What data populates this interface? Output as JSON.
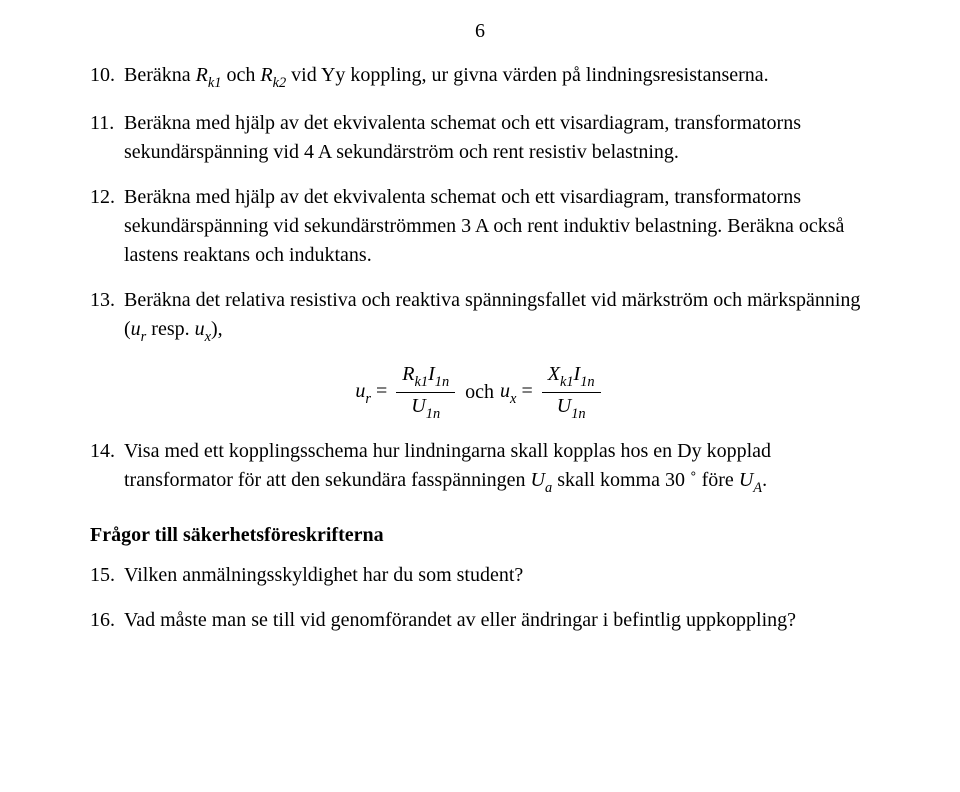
{
  "page_number": "6",
  "items": {
    "q10": {
      "num": "10.",
      "t1": "Beräkna ",
      "rk1": "R",
      "rk1_sub": "k1",
      "t2": " och ",
      "rk2": "R",
      "rk2_sub": "k2",
      "t3": " vid Yy koppling, ur givna värden på lindningsresistanserna."
    },
    "q11": {
      "num": "11.",
      "text": "Beräkna med hjälp av det ekvivalenta schemat och ett visardiagram, transformatorns sekundärspänning vid 4 A sekundärström och rent resistiv belastning."
    },
    "q12": {
      "num": "12.",
      "text": "Beräkna med hjälp av det ekvivalenta schemat och ett visardiagram, transformatorns sekundärspänning vid sekundärströmmen 3 A och rent induktiv belastning. Beräkna också lastens reaktans och induktans."
    },
    "q13": {
      "num": "13.",
      "t1": "Beräkna det relativa resistiva och reaktiva spänningsfallet vid märkström och märkspänning (",
      "ur": "u",
      "ur_sub": "r",
      "t2": " resp. ",
      "ux": "u",
      "ux_sub": "x",
      "t3": "),"
    },
    "formula": {
      "ur": "u",
      "ur_sub": "r",
      "eq": " = ",
      "n1_R": "R",
      "n1_R_sub": "k1",
      "n1_I": "I",
      "n1_I_sub": "1n",
      "d1_U": "U",
      "d1_U_sub": "1n",
      "och": " och ",
      "ux": "u",
      "ux_sub": "x",
      "n2_X": "X",
      "n2_X_sub": "k1",
      "n2_I": "I",
      "n2_I_sub": "1n",
      "d2_U": "U",
      "d2_U_sub": "1n"
    },
    "q14": {
      "num": "14.",
      "t1": "Visa med ett kopplingsschema hur lindningarna skall kopplas hos en Dy kopplad transformator för att den sekundära fasspänningen ",
      "Ua": "U",
      "Ua_sub": "a",
      "t2": " skall komma 30 ˚ före ",
      "UA": "U",
      "UA_sub": "A",
      "t3": "."
    },
    "section": "Frågor till säkerhetsföreskrifterna",
    "q15": {
      "num": "15.",
      "text": "Vilken anmälningsskyldighet har du som student?"
    },
    "q16": {
      "num": "16.",
      "text": "Vad måste man se till vid genomförandet av eller ändringar i befintlig uppkoppling?"
    }
  }
}
